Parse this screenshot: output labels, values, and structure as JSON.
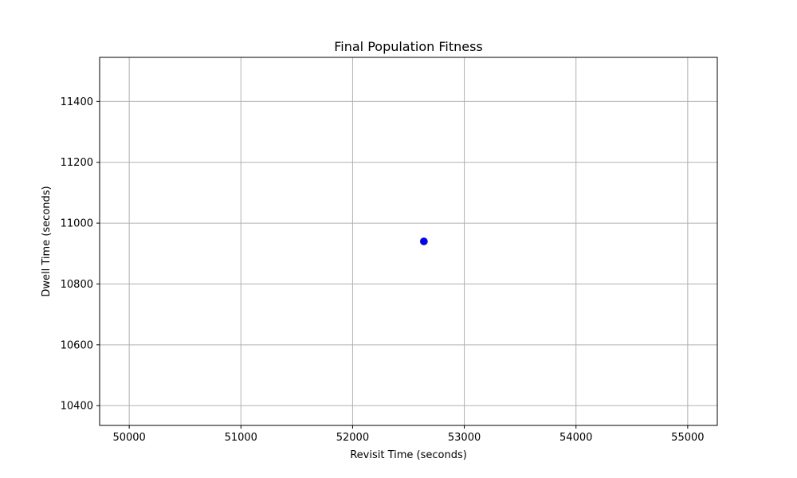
{
  "chart_data": {
    "type": "scatter",
    "title": "Final Population Fitness",
    "xlabel": "Revisit Time (seconds)",
    "ylabel": "Dwell Time (seconds)",
    "xlim": [
      49735,
      55265
    ],
    "ylim": [
      10335,
      11545
    ],
    "xticks": [
      50000,
      51000,
      52000,
      53000,
      54000,
      55000
    ],
    "yticks": [
      10400,
      10600,
      10800,
      11000,
      11200,
      11400
    ],
    "grid": true,
    "points": [
      {
        "x": 52638,
        "y": 10940
      }
    ],
    "colors": {
      "point": "#0000ff",
      "grid": "#b0b0b0",
      "axes": "#000000"
    }
  }
}
